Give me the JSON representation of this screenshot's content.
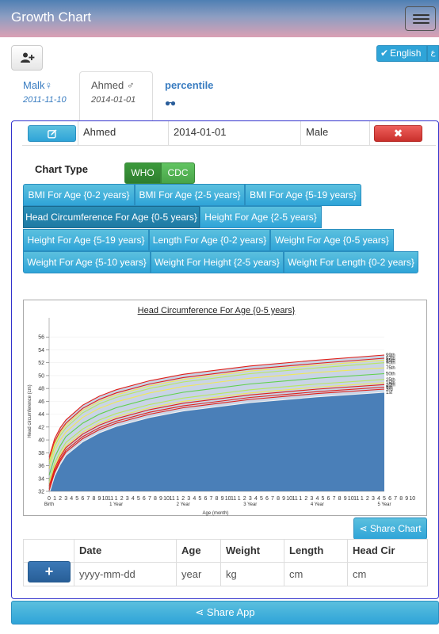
{
  "app": {
    "title": "Growth Chart"
  },
  "language": {
    "label": "English",
    "alt_label": "ع"
  },
  "children_tabs": [
    {
      "name": "Malk",
      "gender_symbol": "♀",
      "dob": "2011-11-10"
    },
    {
      "name": "Ahmed",
      "gender_symbol": "♂",
      "dob": "2014-01-01"
    }
  ],
  "percentile_tab": {
    "label": "percentile",
    "icon": "glasses-icon",
    "glyph": "👓"
  },
  "child_row": {
    "name": "Ahmed",
    "dob": "2014-01-01",
    "gender": "Male"
  },
  "chart_type": {
    "label": "Chart Type",
    "options": [
      "WHO",
      "CDC"
    ],
    "selected": "WHO"
  },
  "chart_buttons": [
    "BMI For Age {0-2 years}",
    "BMI For Age {2-5 years}",
    "BMI For Age {5-19 years}",
    "Head Circumference For Age {0-5 years}",
    "Height For Age {2-5 years}",
    "Height For Age {5-19 years}",
    "Length For Age {0-2 years}",
    "Weight For Age {0-5 years}",
    "Weight For Age {5-10 years}",
    "Weight For Height {2-5 years}",
    "Weight For Length {0-2 years}"
  ],
  "active_chart": "Head Circumference For Age {0-5 years}",
  "chart_data": {
    "type": "line",
    "title": "Head Circumference For Age {0-5 years}",
    "xlabel": "Age (month)",
    "ylabel": "Head circumference (cm)",
    "ylim": [
      32,
      58
    ],
    "xlim": [
      0,
      60
    ],
    "y_ticks": [
      32,
      34,
      36,
      38,
      40,
      42,
      44,
      46,
      48,
      50,
      52,
      54,
      56
    ],
    "x_tick_labels": [
      "0",
      "1",
      "2",
      "3",
      "4",
      "5",
      "6",
      "7",
      "8",
      "9",
      "10",
      "11",
      "1",
      "2",
      "3",
      "4",
      "5",
      "6",
      "7",
      "8",
      "9",
      "10",
      "11",
      "1",
      "2",
      "3",
      "4",
      "5",
      "6",
      "7",
      "8",
      "9",
      "10",
      "11",
      "1",
      "2",
      "3",
      "4",
      "5",
      "6",
      "7",
      "8",
      "9",
      "10",
      "11",
      "1",
      "2",
      "3",
      "4",
      "5",
      "6",
      "7",
      "8",
      "9",
      "10",
      "11",
      "1",
      "2",
      "3",
      "4",
      "5",
      "6",
      "7",
      "8",
      "9",
      "10"
    ],
    "x_year_labels": [
      {
        "month": 0,
        "label": "Birth"
      },
      {
        "month": 12,
        "label": "1 Year"
      },
      {
        "month": 24,
        "label": "2 Year"
      },
      {
        "month": 36,
        "label": "3 Year"
      },
      {
        "month": 48,
        "label": "4 Year"
      },
      {
        "month": 60,
        "label": "5 Year"
      }
    ],
    "x": [
      0,
      1,
      2,
      3,
      6,
      9,
      12,
      18,
      24,
      36,
      48,
      60
    ],
    "series": [
      {
        "name": "99th",
        "color": "#e0201a",
        "values": [
          37.3,
          40.2,
          41.9,
          43.1,
          45.4,
          46.8,
          47.8,
          49.2,
          50.2,
          51.5,
          52.4,
          53.2
        ]
      },
      {
        "name": "97th",
        "color": "#e0201a",
        "values": [
          36.9,
          39.7,
          41.4,
          42.6,
          44.9,
          46.3,
          47.3,
          48.7,
          49.7,
          51.0,
          51.9,
          52.7
        ]
      },
      {
        "name": "95th",
        "color": "#f0e85a",
        "values": [
          36.6,
          39.4,
          41.1,
          42.3,
          44.6,
          46.0,
          47.0,
          48.4,
          49.4,
          50.7,
          51.6,
          52.4
        ]
      },
      {
        "name": "90th",
        "color": "#b8e860",
        "values": [
          36.2,
          39.0,
          40.7,
          41.9,
          44.2,
          45.6,
          46.6,
          48.0,
          49.0,
          50.3,
          51.2,
          52.0
        ]
      },
      {
        "name": "75th",
        "color": "#f0e85a",
        "values": [
          35.5,
          38.3,
          40.0,
          41.2,
          43.5,
          44.9,
          45.9,
          47.3,
          48.3,
          49.6,
          50.5,
          51.2
        ]
      },
      {
        "name": "50th",
        "color": "#5fd04a",
        "values": [
          34.5,
          37.3,
          39.1,
          40.5,
          42.6,
          44.0,
          45.0,
          46.4,
          47.4,
          48.7,
          49.6,
          50.3
        ]
      },
      {
        "name": "25th",
        "color": "#b8e860",
        "values": [
          33.6,
          36.4,
          38.2,
          39.6,
          41.7,
          43.1,
          44.1,
          45.5,
          46.5,
          47.8,
          48.7,
          49.4
        ]
      },
      {
        "name": "15th",
        "color": "#f0e85a",
        "values": [
          33.1,
          35.9,
          37.7,
          39.1,
          41.2,
          42.6,
          43.6,
          45.0,
          46.0,
          47.3,
          48.2,
          48.9
        ]
      },
      {
        "name": "10th",
        "color": "#e0201a",
        "values": [
          32.8,
          35.6,
          37.4,
          38.8,
          40.9,
          42.3,
          43.3,
          44.7,
          45.7,
          47.0,
          47.9,
          48.6
        ]
      },
      {
        "name": "5th",
        "color": "#e0201a",
        "values": [
          32.4,
          35.2,
          37.0,
          38.4,
          40.5,
          41.9,
          42.9,
          44.3,
          45.3,
          46.6,
          47.5,
          48.2
        ]
      },
      {
        "name": "3rd",
        "color": "#e0201a",
        "values": [
          32.1,
          34.9,
          36.7,
          38.1,
          40.2,
          41.6,
          42.6,
          44.0,
          45.0,
          46.3,
          47.2,
          47.9
        ]
      },
      {
        "name": "1st",
        "color": "#f0f0f0",
        "values": [
          31.6,
          34.4,
          36.2,
          37.6,
          39.7,
          41.1,
          42.1,
          43.5,
          44.5,
          45.8,
          46.7,
          47.4
        ]
      }
    ],
    "area_color": "#4a7fb8",
    "grid": true,
    "legend": "right-end labels"
  },
  "share_chart": {
    "label": "Share Chart"
  },
  "measurements": {
    "headers": [
      "Date",
      "Age",
      "Weight",
      "Length",
      "Head Cir"
    ],
    "placeholders": [
      "yyyy-mm-dd",
      "year",
      "kg",
      "cm",
      "cm"
    ],
    "add_label": "+"
  },
  "share_app": {
    "label": "Share App"
  }
}
